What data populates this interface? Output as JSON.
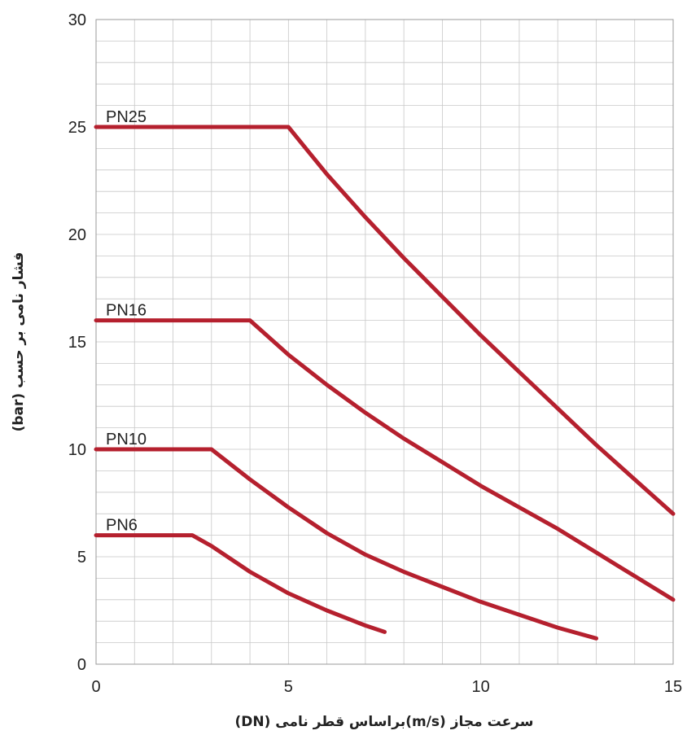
{
  "chart_data": {
    "type": "line",
    "title": "",
    "xlabel": "سرعت مجاز (m/s)براساس قطر نامی (DN)",
    "ylabel": "فشار نامی بر حسب (bar)",
    "xlim": [
      0,
      15
    ],
    "ylim": [
      0,
      30
    ],
    "x_ticks": [
      0,
      5,
      10,
      15
    ],
    "y_ticks": [
      0,
      5,
      10,
      15,
      20,
      25,
      30
    ],
    "x_minor_step": 1,
    "y_minor_step": 1,
    "grid": true,
    "line_color": "#b5202e",
    "series": [
      {
        "name": "PN25",
        "points": [
          [
            0,
            25
          ],
          [
            5,
            25
          ],
          [
            6,
            22.8
          ],
          [
            7,
            20.8
          ],
          [
            8,
            18.9
          ],
          [
            9,
            17.1
          ],
          [
            10,
            15.3
          ],
          [
            11,
            13.6
          ],
          [
            12,
            11.9
          ],
          [
            13,
            10.2
          ],
          [
            14,
            8.6
          ],
          [
            15,
            7
          ]
        ]
      },
      {
        "name": "PN16",
        "points": [
          [
            0,
            16
          ],
          [
            4,
            16
          ],
          [
            5,
            14.4
          ],
          [
            6,
            13
          ],
          [
            7,
            11.7
          ],
          [
            8,
            10.5
          ],
          [
            9,
            9.4
          ],
          [
            10,
            8.3
          ],
          [
            11,
            7.3
          ],
          [
            12,
            6.3
          ],
          [
            13,
            5.2
          ],
          [
            14,
            4.1
          ],
          [
            15,
            3
          ]
        ]
      },
      {
        "name": "PN10",
        "points": [
          [
            0,
            10
          ],
          [
            3,
            10
          ],
          [
            4,
            8.6
          ],
          [
            5,
            7.3
          ],
          [
            6,
            6.1
          ],
          [
            7,
            5.1
          ],
          [
            8,
            4.3
          ],
          [
            9,
            3.6
          ],
          [
            10,
            2.9
          ],
          [
            11,
            2.3
          ],
          [
            12,
            1.7
          ],
          [
            13,
            1.2
          ]
        ]
      },
      {
        "name": "PN6",
        "points": [
          [
            0,
            6
          ],
          [
            2.5,
            6
          ],
          [
            3,
            5.5
          ],
          [
            4,
            4.3
          ],
          [
            5,
            3.3
          ],
          [
            6,
            2.5
          ],
          [
            7,
            1.8
          ],
          [
            7.5,
            1.5
          ]
        ]
      }
    ]
  }
}
